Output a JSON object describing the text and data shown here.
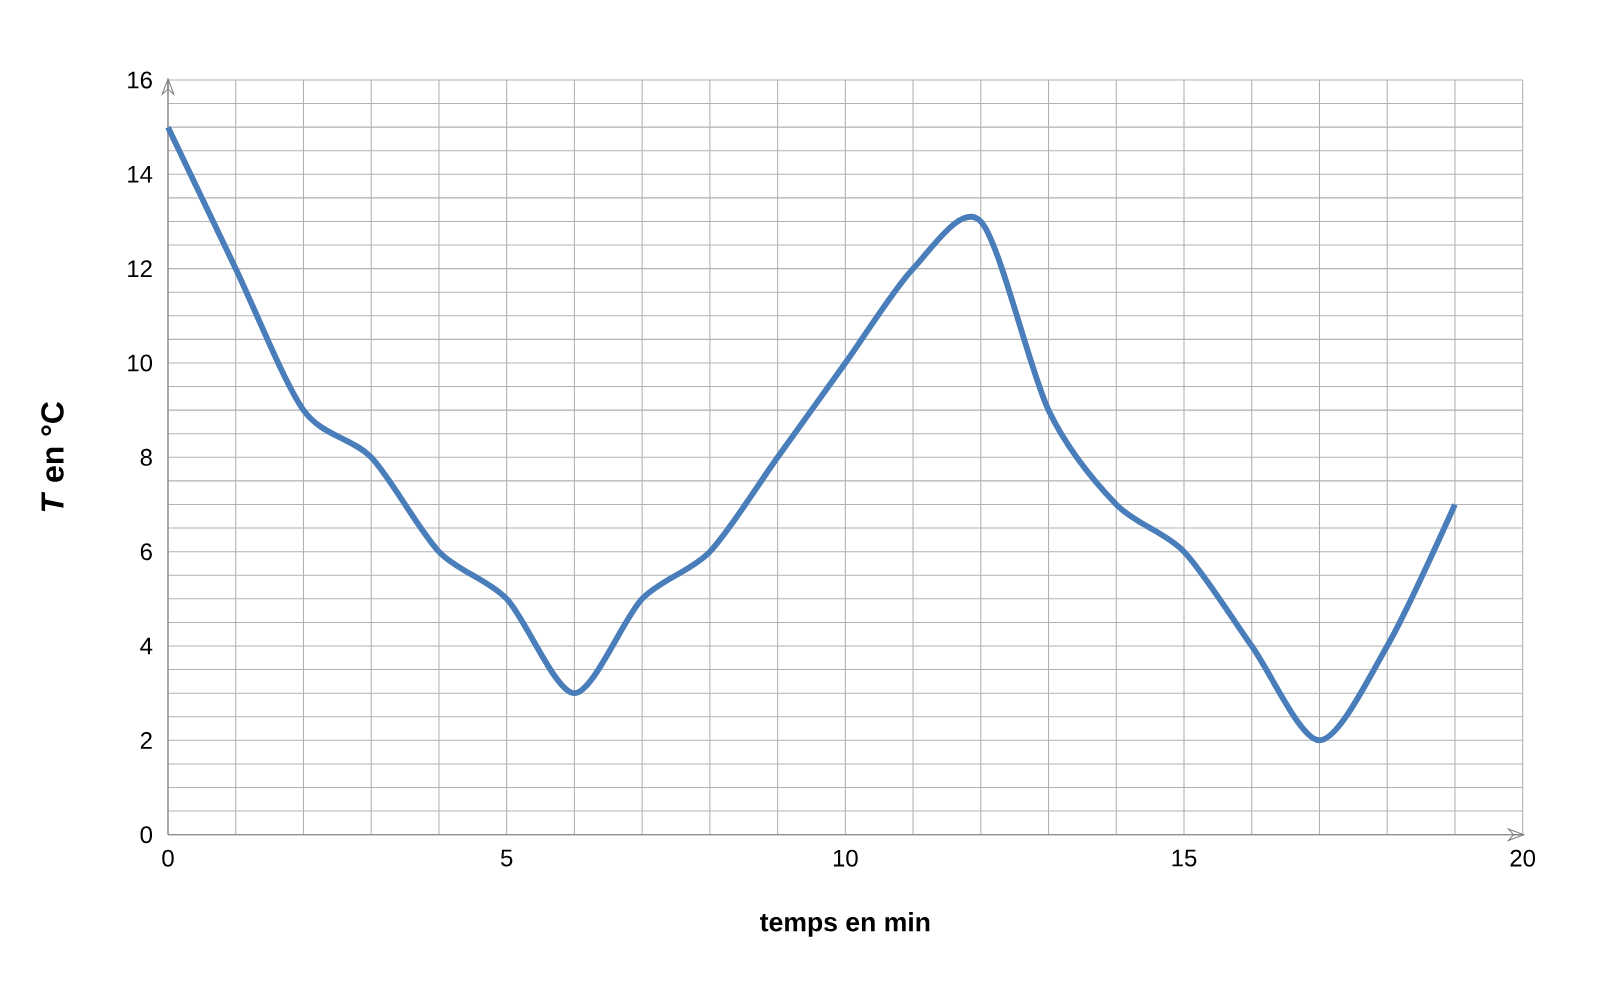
{
  "chart_data": {
    "type": "line",
    "xlabel": "temps en min",
    "ylabel": "*T* en °C",
    "x": [
      0,
      1,
      2,
      3,
      4,
      5,
      6,
      7,
      8,
      9,
      10,
      11,
      12,
      13,
      14,
      15,
      16,
      17,
      18,
      19
    ],
    "series": [
      {
        "color": "#4a7ebb",
        "values": [
          15,
          12,
          9,
          8,
          6,
          5,
          3,
          5,
          6,
          8,
          10,
          12,
          13,
          9,
          7,
          6,
          4,
          2,
          4,
          7
        ]
      }
    ],
    "xlim": [
      0,
      20
    ],
    "ylim": [
      0,
      16
    ],
    "xticks": [
      0,
      5,
      10,
      15,
      20
    ],
    "yticks": [
      0,
      2,
      4,
      6,
      8,
      10,
      12,
      14,
      16
    ],
    "grid": true,
    "marker": "none",
    "line_style": "solid"
  }
}
